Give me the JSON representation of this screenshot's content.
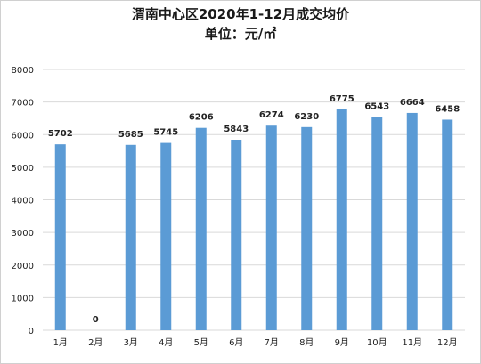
{
  "chart_data": {
    "type": "bar",
    "title": "渭南中心区2020年1-12月成交均价",
    "subtitle": "单位：元/㎡",
    "categories": [
      "1月",
      "2月",
      "3月",
      "4月",
      "5月",
      "6月",
      "7月",
      "8月",
      "9月",
      "10月",
      "11月",
      "12月"
    ],
    "values": [
      5702,
      0,
      5685,
      5745,
      6206,
      5843,
      6274,
      6230,
      6775,
      6543,
      6664,
      6458
    ],
    "ylim": [
      0,
      8000
    ],
    "yticks": [
      0,
      1000,
      2000,
      3000,
      4000,
      5000,
      6000,
      7000,
      8000
    ],
    "grid": true,
    "legend": "none",
    "bar_color": "#5b9bd5",
    "grid_color": "#d9d9d9"
  }
}
